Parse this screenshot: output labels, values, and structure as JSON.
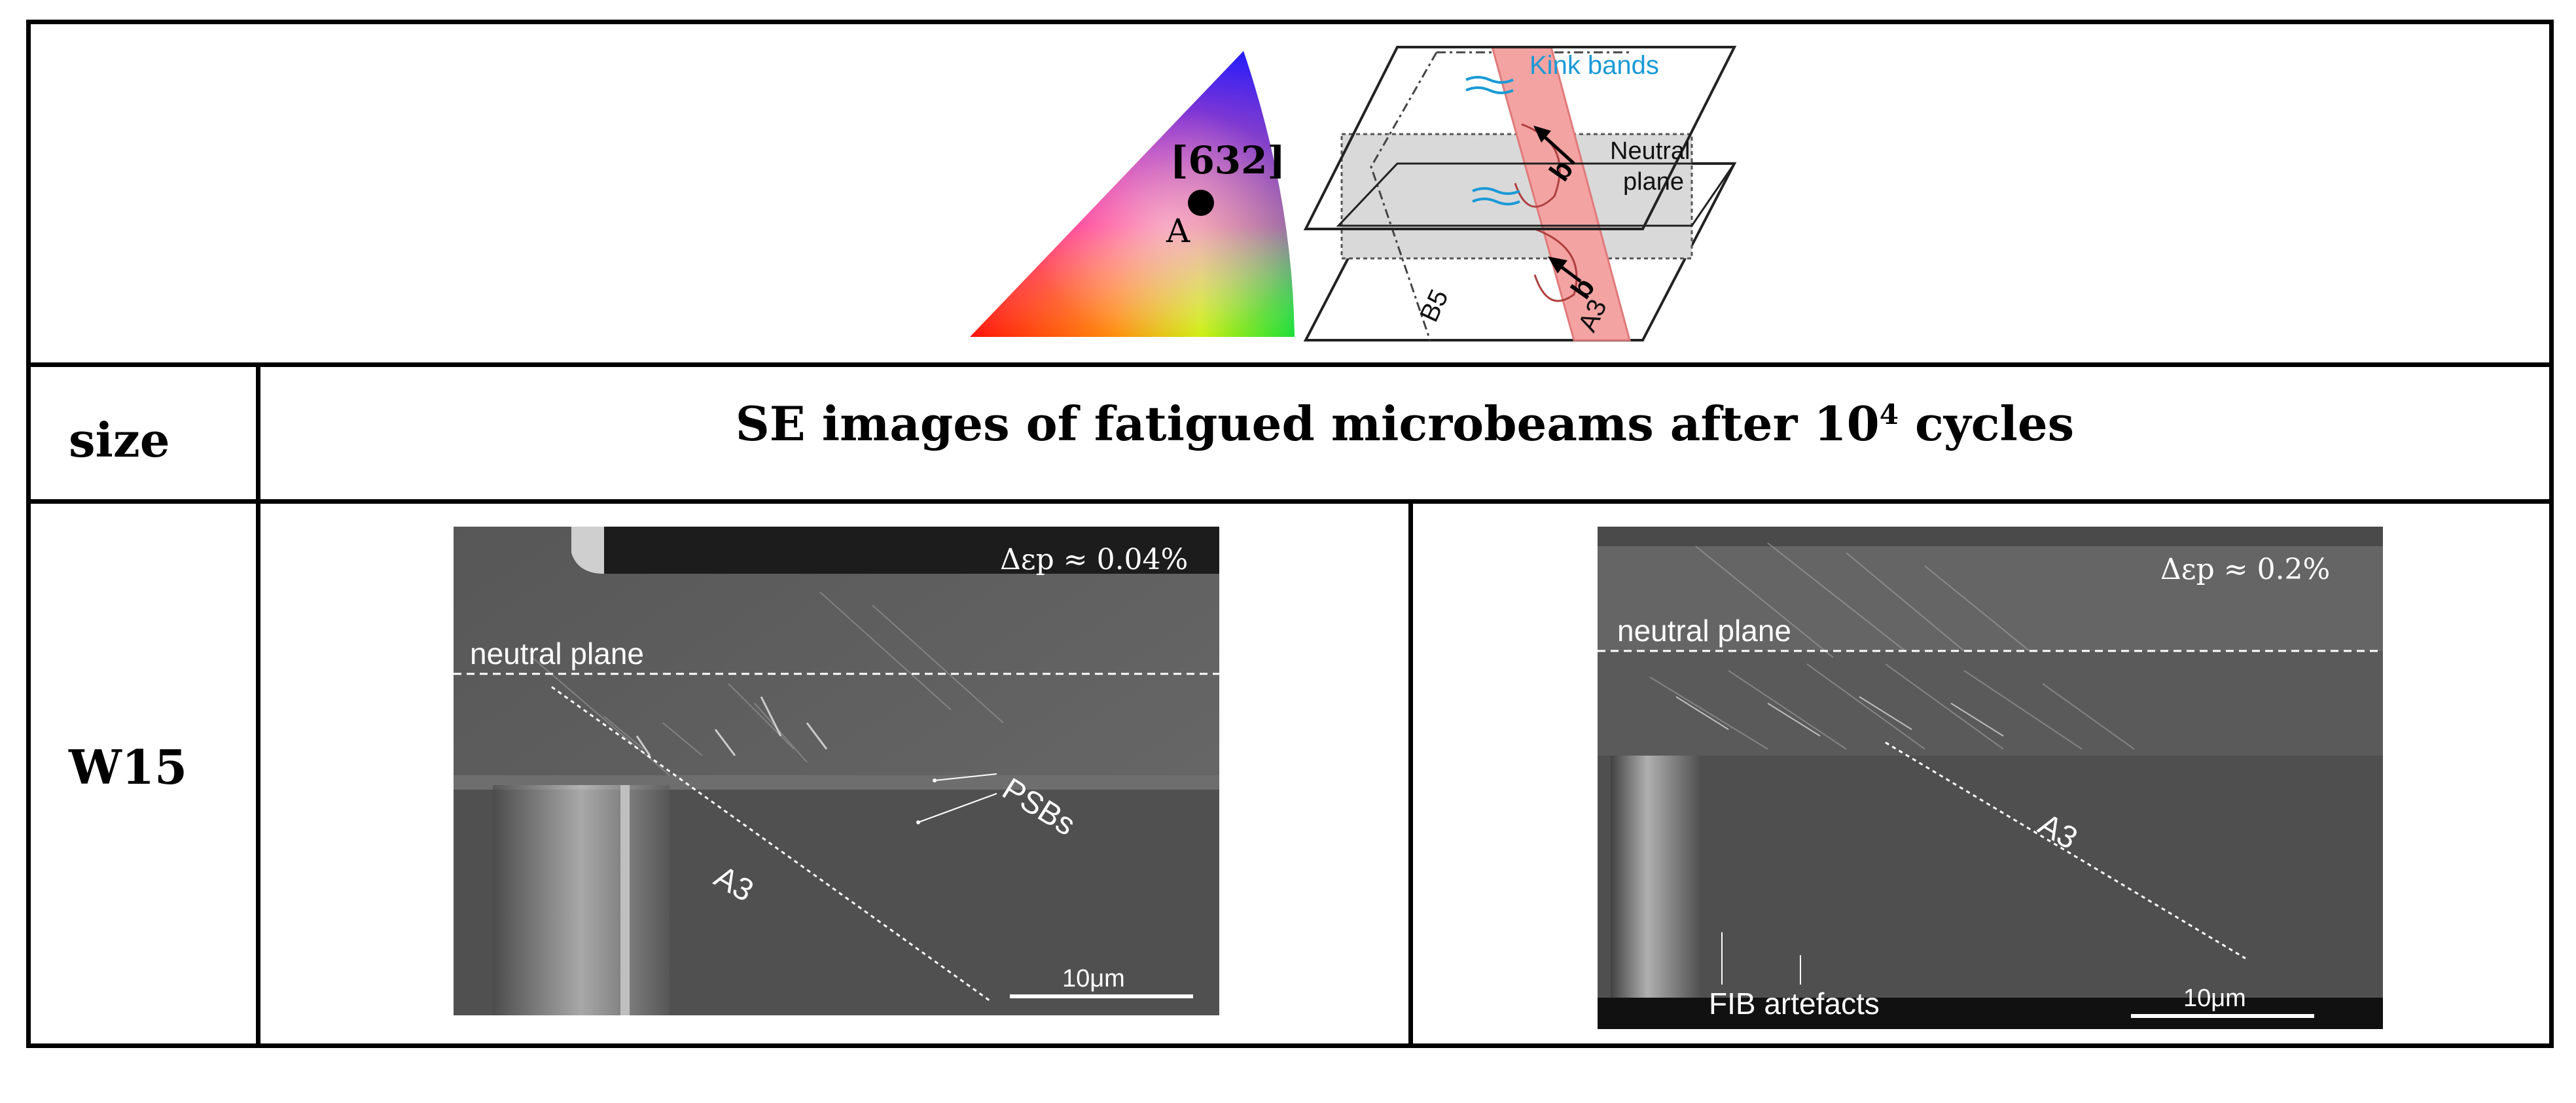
{
  "header_row": {
    "triangle": {
      "direction_label": "[632]",
      "point_label": "A"
    },
    "schematic": {
      "kink_bands_label": "Kink bands",
      "neutral_plane_label_line1": "Neutral",
      "neutral_plane_label_line2": "plane",
      "burgers_label_top": "b",
      "burgers_label_bottom": "b",
      "slip_plane_a3_label": "A3",
      "slip_plane_b5_label": "B5",
      "colors": {
        "kink_bands": "#1a9ad6",
        "slip_plane_fill": "#f4a3a3",
        "neutral_plane_fill": "#d9d9d9"
      }
    }
  },
  "subheader_row": {
    "size_label": "size",
    "title_main": "SE images of fatigued microbeams after 10",
    "title_superscript": "4",
    "title_tail": " cycles"
  },
  "data_row": {
    "size_value": "W15",
    "left_image": {
      "strain_label": "Δεp ≈ 0.04%",
      "neutral_plane_label": "neutral plane",
      "psb_label": "PSBs",
      "slip_label": "A3",
      "scale_label": "10μm"
    },
    "right_image": {
      "strain_label": "Δεp ≈ 0.2%",
      "neutral_plane_label": "neutral plane",
      "slip_label": "A3",
      "fib_label": "FIB artefacts",
      "scale_label": "10μm"
    }
  }
}
